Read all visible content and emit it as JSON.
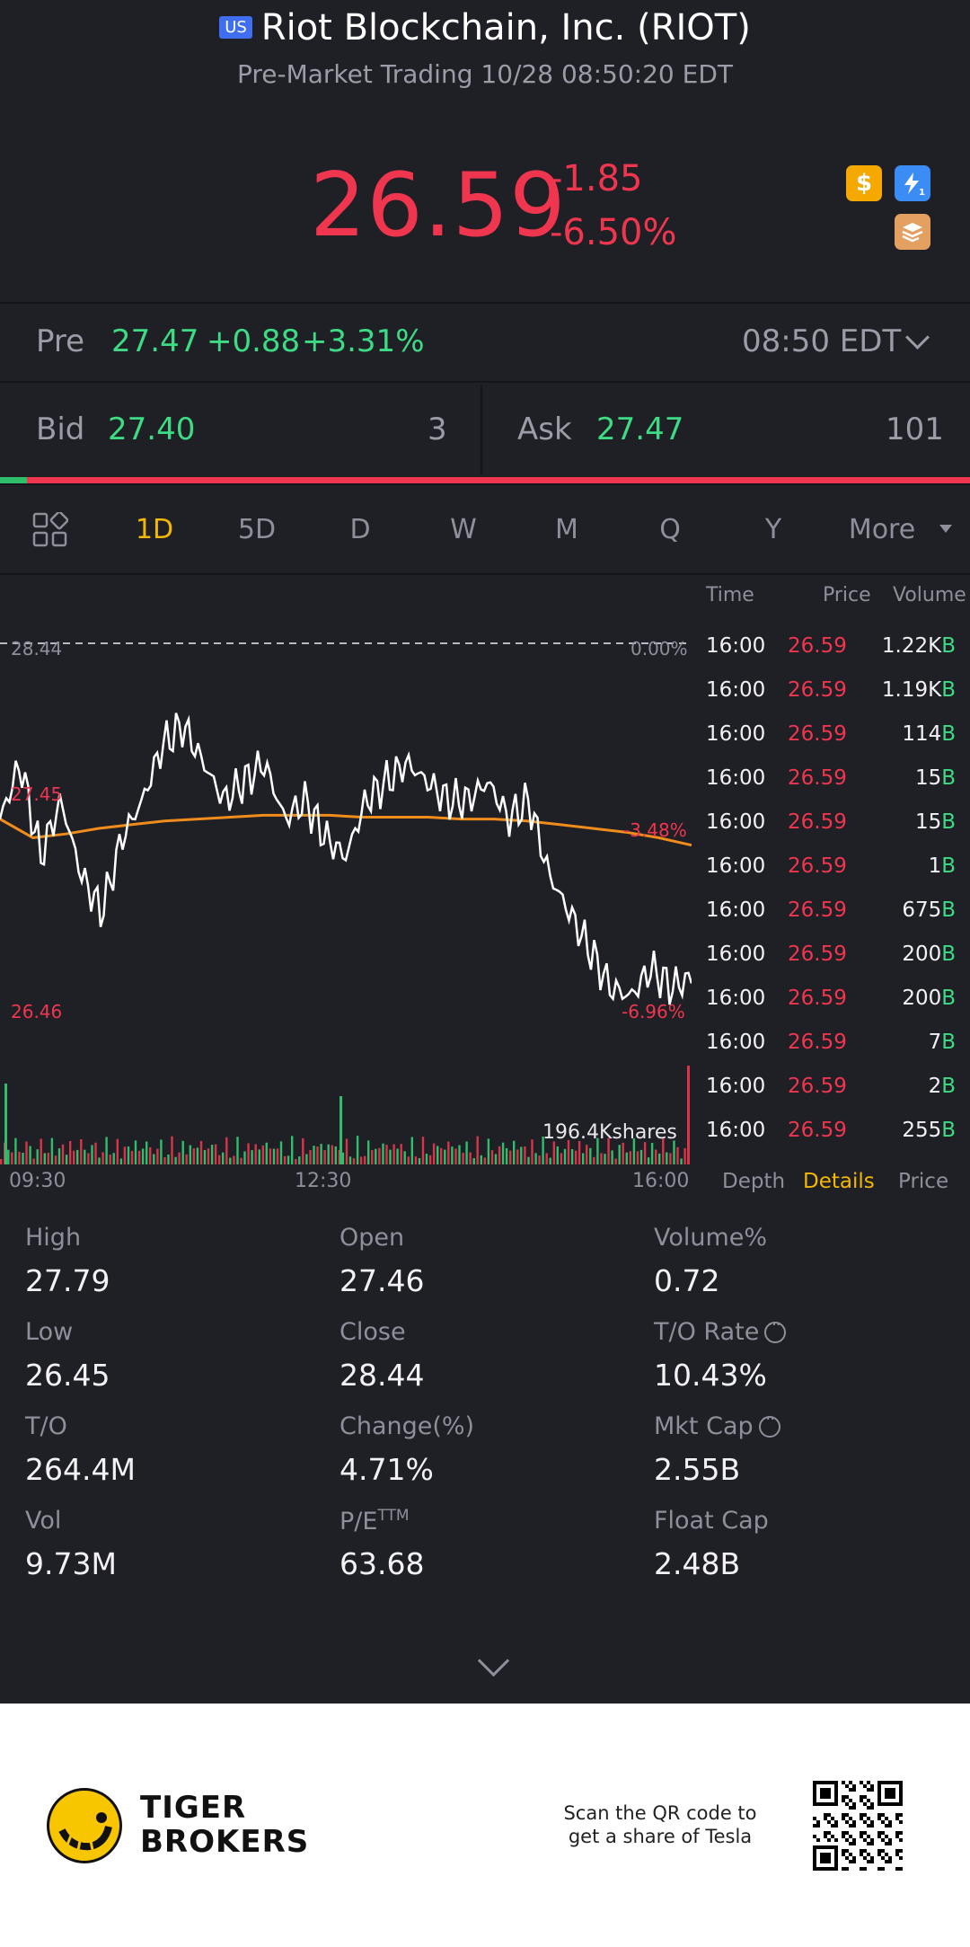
{
  "header": {
    "market_badge": "US",
    "title": "Riot Blockchain, Inc. (RIOT)",
    "subtitle": "Pre-Market Trading 10/28 08:50:20 EDT"
  },
  "quote": {
    "price": "26.59",
    "change": "-1.85",
    "change_pct": "-6.50%",
    "icons": [
      "dollar-icon",
      "lightning-level-1-icon",
      "education-icon"
    ]
  },
  "pre_market": {
    "label": "Pre",
    "price": "27.47",
    "change": "+0.88",
    "change_pct": "+3.31%",
    "time": "08:50 EDT"
  },
  "bid_ask": {
    "bid_label": "Bid",
    "bid_price": "27.40",
    "bid_size": "3",
    "ask_label": "Ask",
    "ask_price": "27.47",
    "ask_size": "101"
  },
  "periods": {
    "items": [
      "1D",
      "5D",
      "D",
      "W",
      "M",
      "Q",
      "Y"
    ],
    "active": "1D",
    "more": "More"
  },
  "chart": {
    "prev_close_label": "28.44",
    "prev_close_pct": "0.00%",
    "mid_label": "27.45",
    "mid_pct": "-3.48%",
    "low_label": "26.46",
    "low_pct": "-6.96%",
    "volume_label": "196.4Kshares",
    "x_labels": [
      "09:30",
      "12:30",
      "16:00"
    ]
  },
  "chart_data": {
    "type": "line",
    "x_ticks": [
      "09:30",
      "12:30",
      "16:00"
    ],
    "y_reference": [
      28.44,
      27.45,
      26.46
    ],
    "y_reference_pct": [
      "0.00%",
      "-3.48%",
      "-6.96%"
    ],
    "series": [
      {
        "name": "price",
        "color": "#ffffff",
        "values": [
          27.5,
          27.8,
          27.3,
          27.6,
          27.2,
          27.0,
          27.4,
          27.6,
          27.9,
          28.0,
          27.8,
          27.6,
          27.7,
          27.8,
          27.5,
          27.6,
          27.4,
          27.3,
          27.6,
          27.7,
          27.8,
          27.7,
          27.6,
          27.6,
          27.7,
          27.5,
          27.6,
          27.2,
          27.0,
          26.8,
          26.6,
          26.55,
          26.7,
          26.6,
          26.65
        ]
      },
      {
        "name": "average",
        "color": "#f08c1c",
        "values": [
          27.5,
          27.4,
          27.42,
          27.45,
          27.47,
          27.49,
          27.5,
          27.51,
          27.52,
          27.52,
          27.52,
          27.51,
          27.51,
          27.51,
          27.5,
          27.5,
          27.49,
          27.47,
          27.45,
          27.43,
          27.4,
          27.36
        ]
      }
    ],
    "volume_label": "196.4Kshares"
  },
  "trades": {
    "headers": [
      "Time",
      "Price",
      "Volume"
    ],
    "rows": [
      {
        "time": "16:00",
        "price": "26.59",
        "volume": "1.22K",
        "side": "B"
      },
      {
        "time": "16:00",
        "price": "26.59",
        "volume": "1.19K",
        "side": "B"
      },
      {
        "time": "16:00",
        "price": "26.59",
        "volume": "114",
        "side": "B"
      },
      {
        "time": "16:00",
        "price": "26.59",
        "volume": "15",
        "side": "B"
      },
      {
        "time": "16:00",
        "price": "26.59",
        "volume": "15",
        "side": "B"
      },
      {
        "time": "16:00",
        "price": "26.59",
        "volume": "1",
        "side": "B"
      },
      {
        "time": "16:00",
        "price": "26.59",
        "volume": "675",
        "side": "B"
      },
      {
        "time": "16:00",
        "price": "26.59",
        "volume": "200",
        "side": "B"
      },
      {
        "time": "16:00",
        "price": "26.59",
        "volume": "200",
        "side": "B"
      },
      {
        "time": "16:00",
        "price": "26.59",
        "volume": "7",
        "side": "B"
      },
      {
        "time": "16:00",
        "price": "26.59",
        "volume": "2",
        "side": "B"
      },
      {
        "time": "16:00",
        "price": "26.59",
        "volume": "255",
        "side": "B"
      }
    ],
    "tabs": [
      "Depth",
      "Details",
      "Price"
    ],
    "active_tab": "Details"
  },
  "stats": {
    "high_label": "High",
    "high": "27.79",
    "open_label": "Open",
    "open": "27.46",
    "volpct_label": "Volume%",
    "volpct": "0.72",
    "low_label": "Low",
    "low": "26.45",
    "close_label": "Close",
    "close": "28.44",
    "torate_label": "T/O Rate",
    "torate": "10.43%",
    "to_label": "T/O",
    "to": "264.4M",
    "change_label": "Change(%)",
    "change": "4.71%",
    "mktcap_label": "Mkt Cap",
    "mktcap": "2.55B",
    "vol_label": "Vol",
    "vol": "9.73M",
    "pe_label": "P/E",
    "pe_sup": "TTM",
    "pe": "63.68",
    "floatcap_label": "Float Cap",
    "floatcap": "2.48B"
  },
  "footer": {
    "brand_line1": "TIGER",
    "brand_line2": "BROKERS",
    "scan_line1": "Scan the QR code to",
    "scan_line2": "get a share of Tesla"
  },
  "colors": {
    "up": "#3ddc84",
    "down": "#f0364f",
    "accent": "#f5b800",
    "background": "#1f1f26"
  }
}
